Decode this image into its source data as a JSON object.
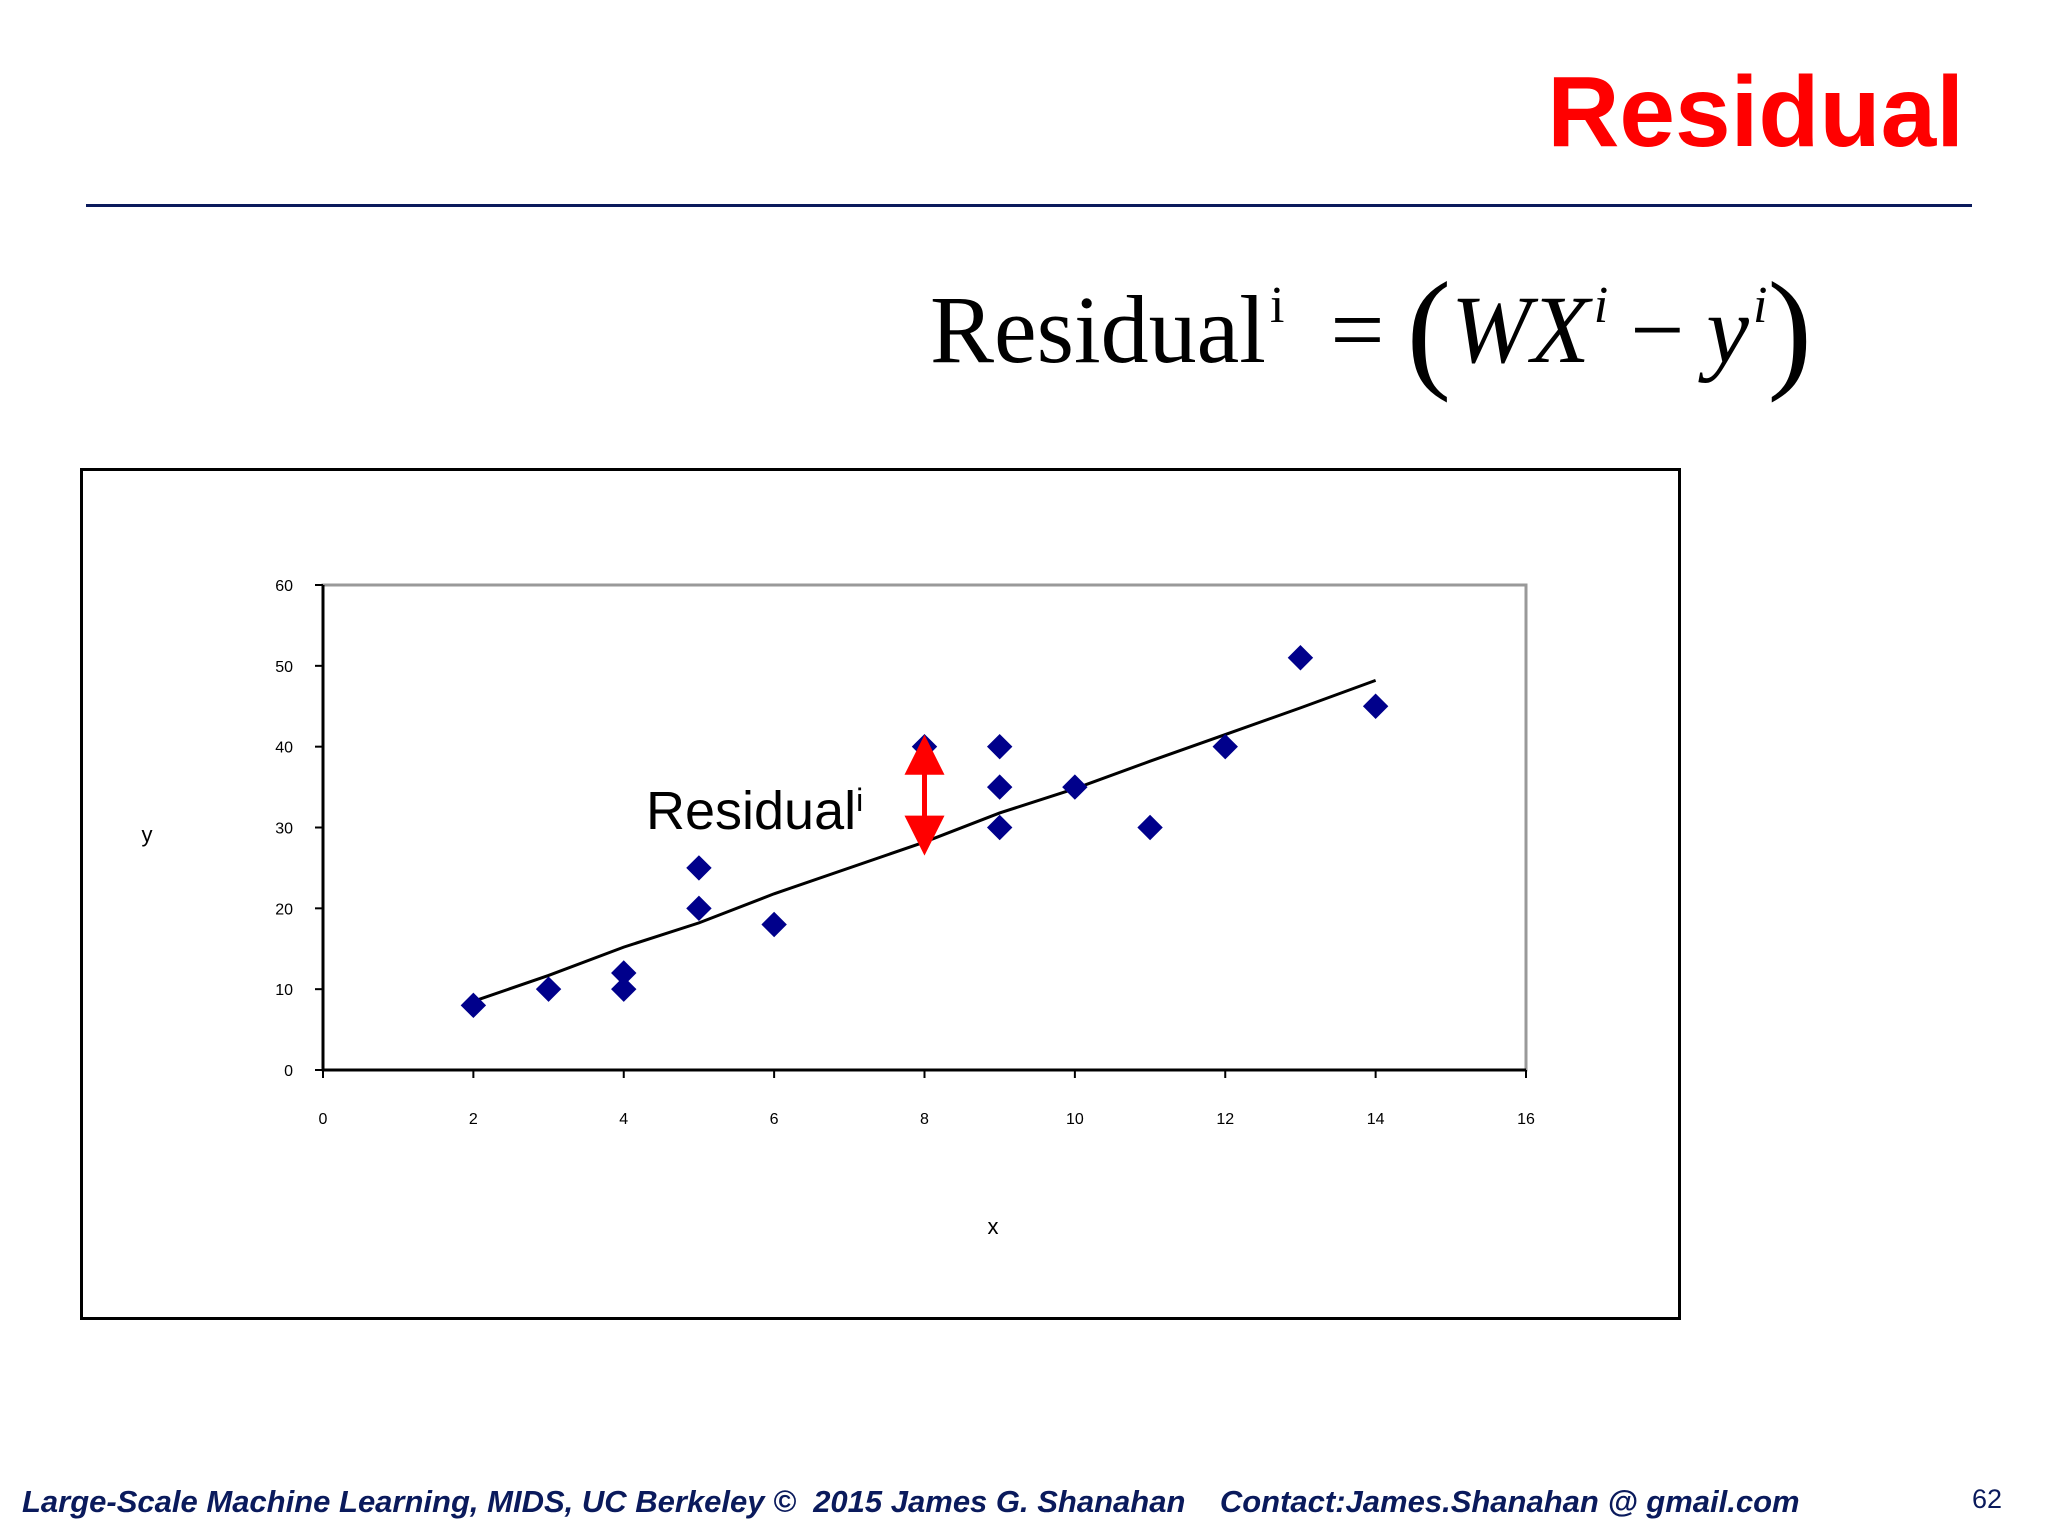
{
  "slide": {
    "title": "Residual",
    "formula": {
      "lhs": "Residual",
      "lhs_sup": "i",
      "equals": "=",
      "open_paren": "(",
      "w": "W",
      "x": "X",
      "x_sup": "i",
      "minus": "−",
      "y": "y",
      "y_sup": "i",
      "close_paren": ")"
    },
    "footer": "Large-Scale Machine Learning, MIDS, UC Berkeley ©  2015 James G. Shanahan    Contact:James.Shanahan @ gmail.com",
    "page_number": "62",
    "colors": {
      "title": "#ff0000",
      "accent": "#0a1a5c",
      "marker": "#00008b",
      "arrow": "#ff0000"
    }
  },
  "chart_data": {
    "type": "scatter",
    "title": "",
    "xlabel": "x",
    "ylabel": "y",
    "xlim": [
      0,
      16
    ],
    "ylim": [
      0,
      60
    ],
    "xticks": [
      0,
      2,
      4,
      6,
      8,
      10,
      12,
      14,
      16
    ],
    "yticks": [
      0,
      10,
      20,
      30,
      40,
      50,
      60
    ],
    "grid": false,
    "legend": "none",
    "points": [
      {
        "x": 2,
        "y": 8
      },
      {
        "x": 3,
        "y": 10
      },
      {
        "x": 4,
        "y": 10
      },
      {
        "x": 4,
        "y": 12
      },
      {
        "x": 5,
        "y": 20
      },
      {
        "x": 5,
        "y": 25
      },
      {
        "x": 6,
        "y": 18
      },
      {
        "x": 8,
        "y": 40
      },
      {
        "x": 9,
        "y": 30
      },
      {
        "x": 9,
        "y": 35
      },
      {
        "x": 9,
        "y": 40
      },
      {
        "x": 10,
        "y": 35
      },
      {
        "x": 11,
        "y": 30
      },
      {
        "x": 12,
        "y": 40
      },
      {
        "x": 13,
        "y": 51
      },
      {
        "x": 14,
        "y": 45
      }
    ],
    "fit_line": [
      {
        "x": 2,
        "y": 8.5
      },
      {
        "x": 3,
        "y": 11.7
      },
      {
        "x": 4,
        "y": 15.2
      },
      {
        "x": 5,
        "y": 18.2
      },
      {
        "x": 6,
        "y": 21.8
      },
      {
        "x": 8,
        "y": 28.2
      },
      {
        "x": 9,
        "y": 31.8
      },
      {
        "x": 10,
        "y": 34.8
      },
      {
        "x": 11,
        "y": 38.2
      },
      {
        "x": 12,
        "y": 41.5
      },
      {
        "x": 13,
        "y": 44.8
      },
      {
        "x": 14,
        "y": 48.2
      }
    ],
    "annotation": {
      "text": "Residual",
      "sup": "i",
      "arrow": {
        "x": 8,
        "from_y": 39,
        "to_y": 29
      }
    }
  }
}
